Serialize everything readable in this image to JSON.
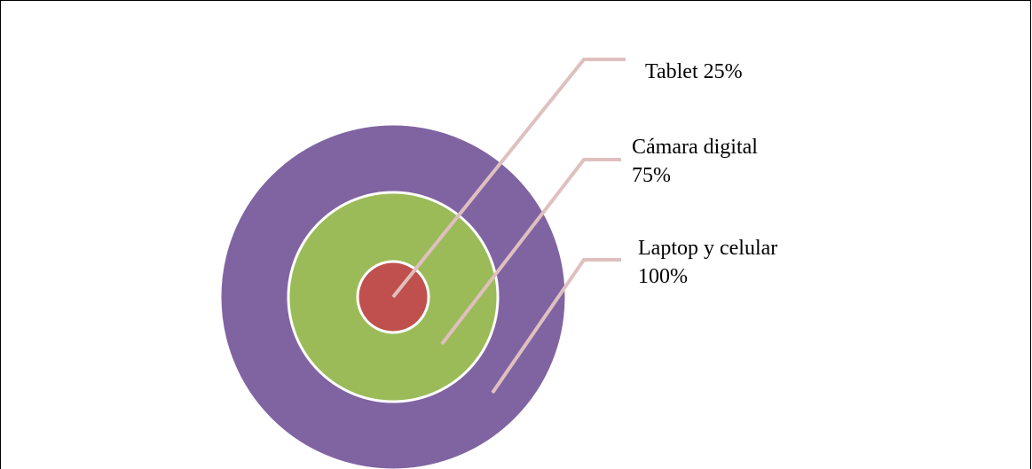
{
  "nodes": [
    {
      "label": [
        "Laptop y celular",
        "100%"
      ]
    },
    {
      "label": [
        "Cámara digital",
        "75%"
      ]
    },
    {
      "label": [
        "Tablet 25%"
      ]
    }
  ]
}
